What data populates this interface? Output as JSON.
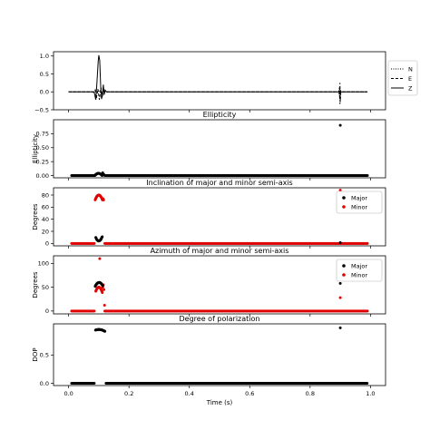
{
  "colors": {
    "black": "#000000",
    "red": "#e00000",
    "frame": "#000000",
    "legend_border": "#cccccc"
  },
  "chart_data": [
    {
      "type": "line",
      "title": "",
      "xlabel": "",
      "ylabel": "",
      "xlim": [
        -0.05,
        1.05
      ],
      "ylim": [
        -0.5,
        1.12
      ],
      "yticks": [
        1.0,
        0.5,
        0.0,
        -0.5
      ],
      "yticklabels": [
        "1.0",
        "0.5",
        "0.0",
        "−0.5"
      ],
      "legend": {
        "placement": "outside-right",
        "entries": [
          "N",
          "E",
          "Z"
        ]
      },
      "series": [
        {
          "name": "N",
          "style": "dotted",
          "color": "#000000",
          "points": [
            [
              0.0,
              0.0
            ],
            [
              0.085,
              0.0
            ],
            [
              0.09,
              0.03
            ],
            [
              0.095,
              -0.02
            ],
            [
              0.1,
              0.02
            ],
            [
              0.105,
              -0.02
            ],
            [
              0.11,
              0.01
            ],
            [
              0.115,
              0.0
            ],
            [
              0.895,
              0.0
            ],
            [
              0.897,
              -0.12
            ],
            [
              0.898,
              0.1
            ],
            [
              0.899,
              -0.35
            ],
            [
              0.9,
              0.06
            ],
            [
              0.902,
              0.0
            ],
            [
              0.99,
              0.0
            ]
          ]
        },
        {
          "name": "E",
          "style": "dashed",
          "color": "#000000",
          "points": [
            [
              0.0,
              0.0
            ],
            [
              0.085,
              0.0
            ],
            [
              0.088,
              0.05
            ],
            [
              0.092,
              -0.18
            ],
            [
              0.097,
              0.08
            ],
            [
              0.102,
              -0.22
            ],
            [
              0.107,
              0.12
            ],
            [
              0.112,
              -0.12
            ],
            [
              0.117,
              0.04
            ],
            [
              0.122,
              0.0
            ],
            [
              0.895,
              0.0
            ],
            [
              0.897,
              0.12
            ],
            [
              0.898,
              -0.2
            ],
            [
              0.899,
              0.25
            ],
            [
              0.9,
              -0.28
            ],
            [
              0.902,
              0.0
            ],
            [
              0.99,
              0.0
            ]
          ]
        },
        {
          "name": "Z",
          "style": "solid",
          "color": "#000000",
          "points": [
            [
              0.0,
              0.0
            ],
            [
              0.08,
              0.0
            ],
            [
              0.085,
              -0.02
            ],
            [
              0.09,
              -0.22
            ],
            [
              0.094,
              0.28
            ],
            [
              0.098,
              0.85
            ],
            [
              0.1,
              1.02
            ],
            [
              0.103,
              0.88
            ],
            [
              0.106,
              0.2
            ],
            [
              0.109,
              -0.2
            ],
            [
              0.112,
              -0.1
            ],
            [
              0.115,
              0.2
            ],
            [
              0.118,
              -0.08
            ],
            [
              0.121,
              0.05
            ],
            [
              0.125,
              0.0
            ],
            [
              0.895,
              0.0
            ],
            [
              0.898,
              -0.05
            ],
            [
              0.9,
              0.05
            ],
            [
              0.902,
              0.0
            ],
            [
              0.99,
              0.0
            ]
          ]
        }
      ]
    },
    {
      "type": "scatter",
      "title": "Ellipticity",
      "xlabel": "",
      "ylabel": "Ellipticity",
      "xlim": [
        -0.05,
        1.05
      ],
      "ylim": [
        -0.04,
        1.0
      ],
      "yticks": [
        0.0,
        0.25,
        0.5,
        0.75
      ],
      "yticklabels": [
        "0.00",
        "0.25",
        "0.50",
        "0.75"
      ],
      "series": [
        {
          "name": "",
          "color": "#000000",
          "segments": [
            {
              "type": "const",
              "from": 0.01,
              "to": 0.086,
              "step": 0.0025,
              "y": 0.0
            },
            {
              "type": "bump",
              "from": 0.087,
              "to": 0.112,
              "step": 0.0012,
              "peak": 0.04,
              "center": 0.099,
              "width": 0.012
            },
            {
              "type": "points",
              "pts": [
                [
                  0.113,
                  0.05
                ],
                [
                  0.116,
                  0.02
                ],
                [
                  0.118,
                  0.01
                ]
              ]
            },
            {
              "type": "const",
              "from": 0.12,
              "to": 0.99,
              "step": 0.0025,
              "y": 0.0
            },
            {
              "type": "points",
              "pts": [
                [
                  0.9,
                  0.9
                ]
              ]
            }
          ]
        }
      ]
    },
    {
      "type": "scatter",
      "title": "Inclination of major and minor semi-axis",
      "xlabel": "",
      "ylabel": "Degrees",
      "xlim": [
        -0.05,
        1.05
      ],
      "ylim": [
        -4,
        92
      ],
      "yticks": [
        0,
        20,
        40,
        60,
        80
      ],
      "yticklabels": [
        "0",
        "20",
        "40",
        "60",
        "80"
      ],
      "legend": {
        "placement": "top-right",
        "entries": [
          "Major",
          "Minor"
        ]
      },
      "series": [
        {
          "name": "Minor",
          "color": "#e00000",
          "segments": [
            {
              "type": "const",
              "from": 0.01,
              "to": 0.086,
              "step": 0.0025,
              "y": 0.0
            },
            {
              "type": "arc",
              "from": 0.088,
              "to": 0.112,
              "step": 0.0012,
              "base": 72,
              "amp": 8,
              "center": 0.1,
              "width": 0.012
            },
            {
              "type": "points",
              "pts": [
                [
                  0.112,
                  73
                ],
                [
                  0.114,
                  74
                ],
                [
                  0.116,
                  72
                ]
              ]
            },
            {
              "type": "const",
              "from": 0.12,
              "to": 0.99,
              "step": 0.0025,
              "y": 0.0
            },
            {
              "type": "points",
              "pts": [
                [
                  0.9,
                  88
                ]
              ]
            }
          ]
        },
        {
          "name": "Major",
          "color": "#000000",
          "segments": [
            {
              "type": "arc",
              "from": 0.09,
              "to": 0.112,
              "step": 0.0012,
              "base": 11,
              "amp": -7,
              "center": 0.1,
              "width": 0.011
            },
            {
              "type": "points",
              "pts": [
                [
                  0.9,
                  1.5
                ]
              ]
            }
          ]
        }
      ]
    },
    {
      "type": "scatter",
      "title": "Azimuth of major and minor semi-axis",
      "xlabel": "",
      "ylabel": "Degrees",
      "xlim": [
        -0.05,
        1.05
      ],
      "ylim": [
        -6,
        116
      ],
      "yticks": [
        0,
        50,
        100
      ],
      "yticklabels": [
        "0",
        "50",
        "100"
      ],
      "legend": {
        "placement": "top-right",
        "entries": [
          "Major",
          "Minor"
        ]
      },
      "series": [
        {
          "name": "Minor",
          "color": "#e00000",
          "segments": [
            {
              "type": "const",
              "from": 0.01,
              "to": 0.086,
              "step": 0.0025,
              "y": 0.0
            },
            {
              "type": "arc",
              "from": 0.09,
              "to": 0.112,
              "step": 0.0012,
              "base": 38,
              "amp": 12,
              "center": 0.1,
              "width": 0.012
            },
            {
              "type": "points",
              "pts": [
                [
                  0.103,
                  110
                ],
                [
                  0.113,
                  50
                ],
                [
                  0.115,
                  55
                ],
                [
                  0.117,
                  45
                ],
                [
                  0.119,
                  12
                ]
              ]
            },
            {
              "type": "const",
              "from": 0.12,
              "to": 0.99,
              "step": 0.0025,
              "y": 0.0
            },
            {
              "type": "points",
              "pts": [
                [
                  0.9,
                  28
                ]
              ]
            }
          ]
        },
        {
          "name": "Major",
          "color": "#000000",
          "segments": [
            {
              "type": "arc",
              "from": 0.088,
              "to": 0.114,
              "step": 0.0012,
              "base": 52,
              "amp": 8,
              "center": 0.101,
              "width": 0.013
            },
            {
              "type": "points",
              "pts": [
                [
                  0.9,
                  58
                ]
              ]
            }
          ]
        }
      ]
    },
    {
      "type": "scatter",
      "title": "Degree of polarization",
      "xlabel": "Time (s)",
      "ylabel": "DOP",
      "xlim": [
        -0.05,
        1.05
      ],
      "ylim": [
        -0.04,
        1.05
      ],
      "yticks": [
        0.0,
        0.5
      ],
      "yticklabels": [
        "0.0",
        "0.5"
      ],
      "xticks": [
        0.0,
        0.2,
        0.4,
        0.6,
        0.8,
        1.0
      ],
      "xticklabels": [
        "0.0",
        "0.2",
        "0.4",
        "0.6",
        "0.8",
        "1.0"
      ],
      "series": [
        {
          "name": "",
          "color": "#000000",
          "segments": [
            {
              "type": "const",
              "from": 0.01,
              "to": 0.086,
              "step": 0.0025,
              "y": 0.0
            },
            {
              "type": "arc",
              "from": 0.089,
              "to": 0.121,
              "step": 0.0012,
              "base": 0.9,
              "amp": 0.05,
              "center": 0.1,
              "width": 0.025
            },
            {
              "type": "const",
              "from": 0.124,
              "to": 0.99,
              "step": 0.0025,
              "y": 0.0
            },
            {
              "type": "points",
              "pts": [
                [
                  0.9,
                  0.98
                ]
              ]
            }
          ]
        }
      ]
    }
  ]
}
